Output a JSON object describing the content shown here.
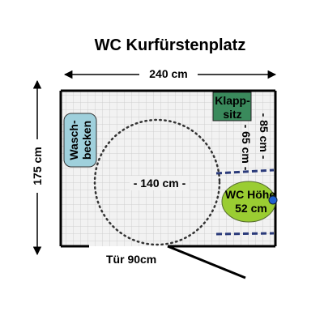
{
  "title": "WC Kurfürstenplatz",
  "dimensions": {
    "width": "240 cm",
    "depth": "175 cm",
    "turning_circle": "- 140 cm -",
    "door": "Tür 90cm",
    "grab_bar_left_height": "- 65 cm -",
    "grab_bar_right_height": "- 85 cm -"
  },
  "fixtures": {
    "sink_label": [
      "Wasch-",
      "becken"
    ],
    "fold_seat_label": [
      "Klapp-",
      "sitz"
    ],
    "toilet_label": [
      "WC Höhe",
      "52 cm"
    ]
  },
  "colors": {
    "sink_fill": "#9fd0dc",
    "fold_seat_fill": "#3a8a5c",
    "toilet_fill": "#9acd32",
    "grab_bar": "#2a3a7a",
    "flush_button": "#2060d0",
    "floor_tile": "#e6e6e6"
  }
}
